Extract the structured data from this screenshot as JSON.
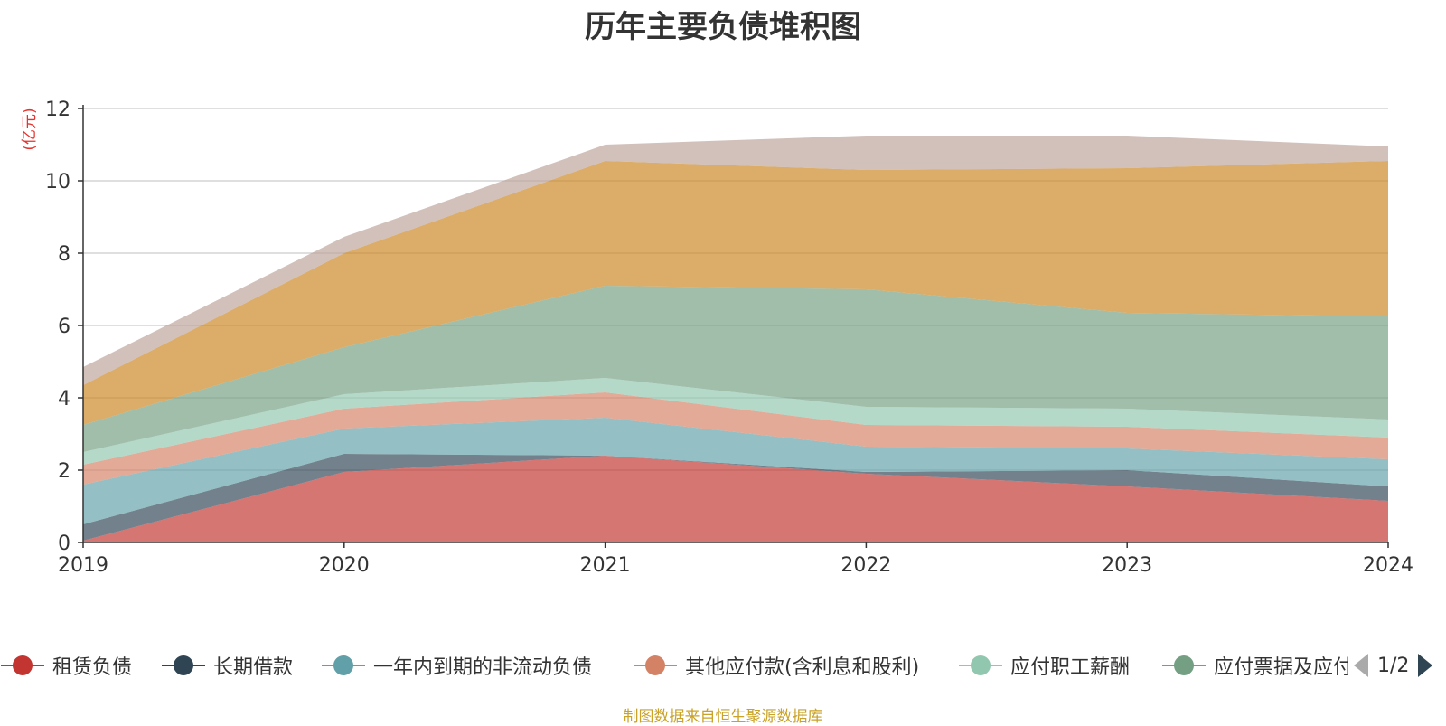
{
  "chart_data": {
    "type": "area",
    "stacked": true,
    "title": "历年主要负债堆积图",
    "ylabel": "(亿元)",
    "xlabel": "",
    "x": [
      "2019",
      "2020",
      "2021",
      "2022",
      "2023",
      "2024"
    ],
    "ylim": [
      0,
      12
    ],
    "yticks": [
      0,
      2,
      4,
      6,
      8,
      10,
      12
    ],
    "grid": true,
    "legend_position": "bottom",
    "series": [
      {
        "name": "租赁负债",
        "color": "#c23531",
        "values": [
          0.05,
          1.95,
          2.4,
          1.9,
          1.55,
          1.15
        ]
      },
      {
        "name": "长期借款",
        "color": "#2f4554",
        "values": [
          0.45,
          0.5,
          0.0,
          0.05,
          0.45,
          0.4
        ]
      },
      {
        "name": "一年内到期的非流动负债",
        "color": "#61a0a8",
        "values": [
          1.1,
          0.7,
          1.05,
          0.7,
          0.6,
          0.75
        ]
      },
      {
        "name": "其他应付款(含利息和股利)",
        "color": "#d48265",
        "values": [
          0.55,
          0.55,
          0.7,
          0.6,
          0.6,
          0.6
        ]
      },
      {
        "name": "应付职工薪酬",
        "color": "#91c7ae",
        "values": [
          0.35,
          0.4,
          0.4,
          0.5,
          0.5,
          0.5
        ]
      },
      {
        "name": "应付票据及应付账款",
        "color": "#749f83",
        "values": [
          0.75,
          1.3,
          2.55,
          3.25,
          2.65,
          2.85
        ]
      },
      {
        "name": "",
        "color": "#ca8622",
        "values": [
          1.1,
          2.6,
          3.45,
          3.3,
          4.0,
          4.3
        ]
      },
      {
        "name": "",
        "color": "#bda29a",
        "values": [
          0.5,
          0.45,
          0.45,
          0.95,
          0.9,
          0.4
        ]
      }
    ]
  },
  "legend": {
    "visible_items": [
      {
        "label": "租赁负债",
        "color": "#c23531"
      },
      {
        "label": "长期借款",
        "color": "#2f4554"
      },
      {
        "label": "一年内到期的非流动负债",
        "color": "#61a0a8"
      },
      {
        "label": "其他应付款(含利息和股利)",
        "color": "#d48265"
      },
      {
        "label": "应付职工薪酬",
        "color": "#91c7ae"
      },
      {
        "label": "应付票据及应付账款",
        "color": "#749f83"
      }
    ],
    "page_indicator": "1/2"
  },
  "source_note": "制图数据来自恒生聚源数据库"
}
